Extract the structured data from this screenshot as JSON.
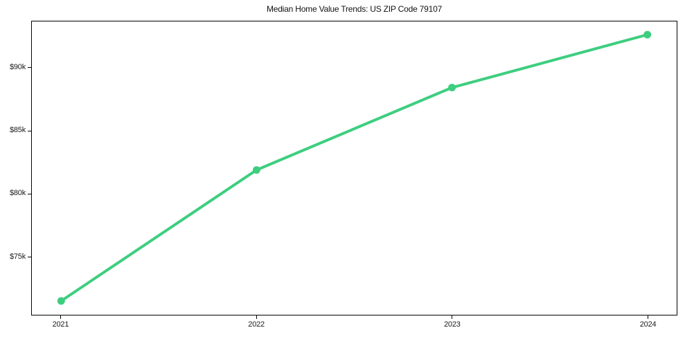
{
  "chart_data": {
    "type": "line",
    "title": "Median Home Value Trends: US ZIP Code 79107",
    "categories": [
      "2021",
      "2022",
      "2023",
      "2024"
    ],
    "series": [
      {
        "name": "Median Home Value",
        "values": [
          71500,
          81900,
          88450,
          92650
        ]
      }
    ],
    "xlabel": "",
    "ylabel": "",
    "xlim": [
      -0.15,
      3.15
    ],
    "ylim": [
      70400,
      93700
    ],
    "y_ticks": {
      "values": [
        75000,
        80000,
        85000,
        90000
      ],
      "labels": [
        "$75k",
        "$80k",
        "$85k",
        "$90k"
      ]
    },
    "grid": false,
    "legend": "none",
    "marker": "circle",
    "line_color": "#3dce7f",
    "axis_color": "#000000",
    "text_color": "#1a1a1a",
    "background_color": "#ffffff"
  }
}
